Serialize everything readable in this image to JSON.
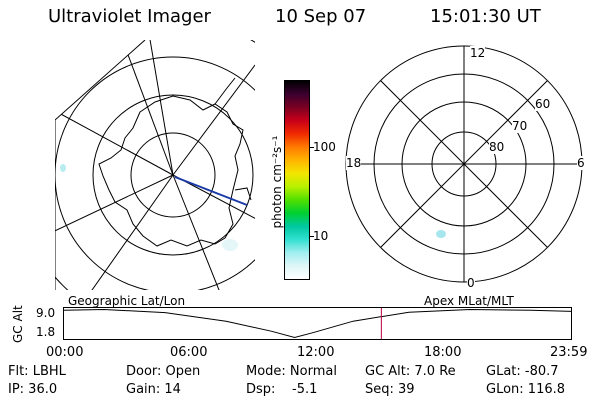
{
  "header": {
    "instrument": "Ultraviolet Imager",
    "date": "10 Sep 07",
    "time": "15:01:30 UT"
  },
  "colorbar": {
    "unit_label": "photon cm⁻²s⁻¹",
    "ticks": [
      "100",
      "10"
    ],
    "colors": [
      "#000000",
      "#3b0030",
      "#7a0022",
      "#c8001a",
      "#f02a00",
      "#ff7a00",
      "#ffb400",
      "#f2e600",
      "#b9f000",
      "#52e000",
      "#00d030",
      "#00c8a0",
      "#30e0d0",
      "#a0eef0",
      "#dff6f8",
      "#ffffff"
    ]
  },
  "left_map": {
    "projection_label": "Geographic Lat/Lon"
  },
  "right_map": {
    "projection_label": "Apex MLat/MLT",
    "mlt_labels": {
      "top": "12",
      "bottom": "0",
      "left": "18",
      "right": "6"
    },
    "lat_labels": [
      "60",
      "70",
      "80"
    ]
  },
  "timeline": {
    "axis_label": "GC Alt",
    "y_ticks": [
      "9.0",
      "1.8"
    ],
    "times": [
      "00:00",
      "06:00",
      "12:00",
      "18:00",
      "23:59"
    ],
    "current_time_frac": 0.6257,
    "altitude_curve": [
      [
        0,
        8.8
      ],
      [
        0.08,
        9.0
      ],
      [
        0.2,
        8.2
      ],
      [
        0.32,
        6.0
      ],
      [
        0.41,
        3.4
      ],
      [
        0.455,
        1.8
      ],
      [
        0.49,
        3.0
      ],
      [
        0.57,
        6.0
      ],
      [
        0.68,
        8.3
      ],
      [
        0.8,
        9.0
      ],
      [
        0.92,
        8.8
      ],
      [
        1.0,
        8.5
      ]
    ]
  },
  "info": {
    "filter": "Flt: LBHL",
    "ip": "IP: 36.0",
    "door": "Door: Open",
    "gain": "Gain: 14",
    "mode": "Mode: Normal",
    "dsp_label": "Dsp:",
    "dsp_value": "-5.1",
    "gc_alt": "GC Alt: 7.0 Re",
    "seq": "Seq: 39",
    "glat": "GLat: -80.7",
    "glon": "GLon: 116.8"
  }
}
